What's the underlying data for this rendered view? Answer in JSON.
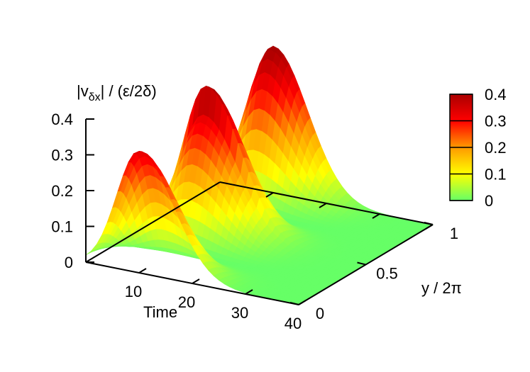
{
  "chart_data": {
    "type": "surface",
    "zlabel": {
      "main": "|v",
      "sub": "δx",
      "rest": "| / (ε/2δ)"
    },
    "xlabel": "Time",
    "ylabel": "y / 2π",
    "x_ticks": [
      "10",
      "20",
      "30",
      "40"
    ],
    "x_tick_values": [
      10,
      20,
      30,
      40
    ],
    "y_ticks": [
      "0",
      "0.5",
      "1"
    ],
    "y_tick_values": [
      0,
      0.5,
      1
    ],
    "z_ticks": [
      "0",
      "0.1",
      "0.2",
      "0.3",
      "0.4"
    ],
    "z_tick_values": [
      0,
      0.1,
      0.2,
      0.3,
      0.4
    ],
    "xlim": [
      0,
      40
    ],
    "ylim": [
      0,
      1
    ],
    "zlim": [
      0,
      0.4
    ],
    "colorbar": {
      "ticks": [
        "0",
        "0.1",
        "0.2",
        "0.3",
        "0.4"
      ],
      "tick_values": [
        0,
        0.1,
        0.2,
        0.3,
        0.4
      ],
      "colors": [
        "#66ff66",
        "#ffff00",
        "#ff9900",
        "#ff0000",
        "#aa0000"
      ]
    },
    "peaks": [
      {
        "time": 10,
        "y": 0.25,
        "value": 0.34
      },
      {
        "time": 10,
        "y": 0.75,
        "value": 0.41
      }
    ]
  }
}
